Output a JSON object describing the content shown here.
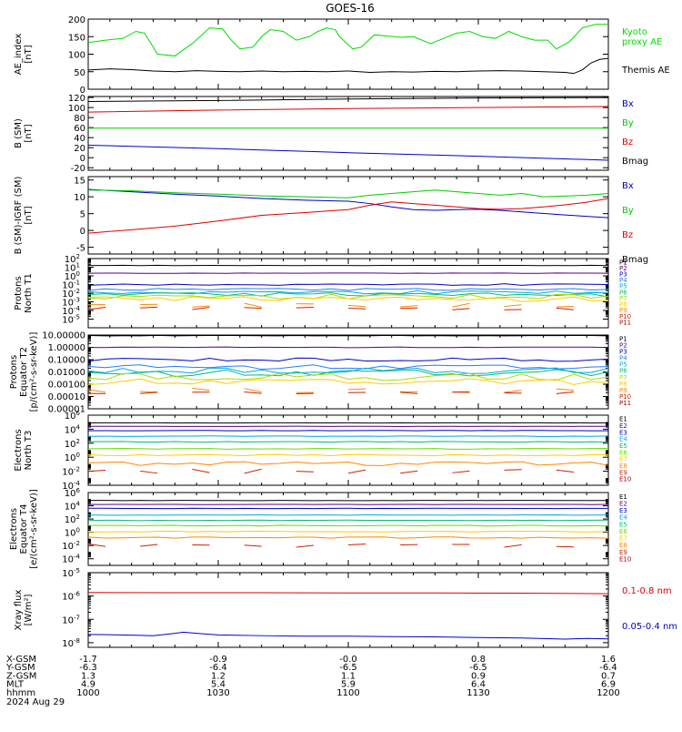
{
  "title": "GOES-16",
  "footer": {
    "row_labels": [
      "X-GSM",
      "Y-GSM",
      "Z-GSM",
      "MLT",
      "hhmm"
    ],
    "date": "2024 Aug 29",
    "columns": [
      [
        "-1.7",
        "-6.3",
        "1.3",
        "4.9",
        "1000"
      ],
      [
        "-0.9",
        "-6.4",
        "1.2",
        "5.4",
        "1030"
      ],
      [
        "-0.0",
        "-6.5",
        "1.1",
        "5.9",
        "1100"
      ],
      [
        "0.8",
        "-6.5",
        "0.9",
        "6.4",
        "1130"
      ],
      [
        "1.6",
        "-6.4",
        "0.7",
        "6.9",
        "1200"
      ]
    ]
  },
  "chart_data": [
    {
      "id": "ae",
      "type": "line",
      "ylabel": [
        "AE_index",
        "[nT]"
      ],
      "ylim": [
        0,
        200
      ],
      "yticks": [
        0,
        50,
        100,
        150,
        200
      ],
      "series": [
        {
          "name": "Kyoto proxy AE",
          "name_lines": [
            "Kyoto",
            "proxy AE"
          ],
          "color": "#00dd00",
          "x": [
            0,
            4,
            8,
            11,
            13,
            16,
            20,
            24,
            28,
            31,
            33,
            35,
            38,
            40,
            42,
            45,
            48,
            51,
            53,
            55,
            57,
            58,
            61,
            63,
            66,
            69,
            72,
            75,
            79,
            82,
            85,
            88,
            91,
            94,
            97,
            100,
            103,
            106,
            108,
            111,
            114,
            117,
            120
          ],
          "y": [
            133,
            140,
            145,
            165,
            160,
            100,
            95,
            130,
            175,
            172,
            140,
            115,
            120,
            150,
            170,
            165,
            140,
            150,
            165,
            175,
            170,
            150,
            115,
            120,
            155,
            152,
            148,
            150,
            130,
            145,
            160,
            165,
            150,
            145,
            165,
            150,
            140,
            140,
            115,
            135,
            175,
            185,
            185
          ]
        },
        {
          "name": "Themis AE",
          "name_lines": [
            "Themis AE"
          ],
          "color": "#000000",
          "x": [
            0,
            5,
            10,
            15,
            20,
            25,
            30,
            35,
            40,
            45,
            50,
            55,
            60,
            65,
            70,
            75,
            80,
            85,
            90,
            95,
            100,
            105,
            110,
            112,
            114,
            116,
            118,
            120
          ],
          "y": [
            55,
            58,
            56,
            52,
            50,
            53,
            51,
            50,
            52,
            50,
            51,
            50,
            52,
            48,
            50,
            49,
            51,
            50,
            52,
            53,
            52,
            50,
            48,
            45,
            55,
            75,
            85,
            88
          ]
        }
      ]
    },
    {
      "id": "bsm",
      "type": "line",
      "ylabel": [
        "B (SM)",
        "[nT]"
      ],
      "ylim": [
        -25,
        122
      ],
      "yticks": [
        -20,
        0,
        20,
        40,
        60,
        80,
        100,
        120
      ],
      "series": [
        {
          "name": "Bx",
          "color": "#0000cc",
          "x": [
            0,
            30,
            60,
            90,
            120
          ],
          "y": [
            25,
            18,
            10,
            3,
            -5
          ]
        },
        {
          "name": "By",
          "color": "#00cc00",
          "x": [
            0,
            60,
            120
          ],
          "y": [
            59,
            59,
            59
          ]
        },
        {
          "name": "Bz",
          "color": "#dd0000",
          "x": [
            0,
            30,
            60,
            90,
            120
          ],
          "y": [
            91,
            95,
            98,
            100,
            102
          ]
        },
        {
          "name": "Bmag",
          "color": "#000000",
          "x": [
            0,
            30,
            60,
            90,
            120
          ],
          "y": [
            112,
            114,
            117,
            119,
            120
          ]
        }
      ]
    },
    {
      "id": "bigrf",
      "type": "line",
      "ylabel": [
        "B (SM)-IGRF (SM)",
        "[nT]"
      ],
      "ylim": [
        -7,
        16
      ],
      "yticks": [
        -5,
        0,
        5,
        10,
        15
      ],
      "series": [
        {
          "name": "Bx",
          "color": "#0000cc",
          "x": [
            0,
            10,
            20,
            30,
            40,
            50,
            60,
            65,
            70,
            75,
            80,
            85,
            90,
            95,
            100,
            110,
            120
          ],
          "y": [
            12.2,
            11.5,
            10.8,
            10.2,
            9.5,
            9.0,
            8.7,
            8.0,
            7.0,
            6.2,
            6.0,
            6.2,
            6.3,
            6.0,
            5.5,
            4.6,
            3.8
          ]
        },
        {
          "name": "By",
          "color": "#00cc00",
          "x": [
            0,
            10,
            20,
            30,
            40,
            50,
            60,
            65,
            70,
            75,
            80,
            85,
            90,
            95,
            100,
            105,
            110,
            115,
            120
          ],
          "y": [
            12.0,
            11.8,
            11.2,
            10.8,
            10.3,
            10.0,
            9.7,
            10.5,
            11.0,
            11.5,
            12.0,
            11.5,
            11.0,
            10.5,
            11.0,
            10.0,
            10.2,
            10.5,
            11.0
          ]
        },
        {
          "name": "Bz",
          "color": "#dd0000",
          "x": [
            0,
            10,
            20,
            30,
            40,
            50,
            60,
            65,
            70,
            75,
            80,
            85,
            90,
            95,
            100,
            105,
            110,
            115,
            120
          ],
          "y": [
            -0.8,
            0.2,
            1.3,
            2.8,
            4.5,
            5.3,
            6.2,
            7.5,
            8.5,
            8.0,
            7.5,
            7.0,
            6.5,
            6.3,
            6.5,
            7.0,
            7.6,
            8.4,
            9.5
          ]
        },
        {
          "name": "Bmag",
          "color": "#000000",
          "x": [],
          "y": []
        }
      ]
    },
    {
      "id": "pnorth",
      "type": "line",
      "log": true,
      "ylabel": [
        "Protons",
        "North T1"
      ],
      "ylim_exp": [
        -6,
        2
      ],
      "yticks_exp": [
        -5,
        -4,
        -3,
        -2,
        -1,
        0,
        1,
        2
      ],
      "series": [
        {
          "name": "P1",
          "color": "#000000",
          "level": 1.2,
          "amp": 0.02
        },
        {
          "name": "P2",
          "color": "#5a007a",
          "level": 0.3,
          "amp": 0.03
        },
        {
          "name": "P3",
          "color": "#0000cc",
          "level": -1.0,
          "amp": 0.1
        },
        {
          "name": "P4",
          "color": "#1f7fff",
          "level": -1.6,
          "amp": 0.15
        },
        {
          "name": "P5",
          "color": "#00aadd",
          "level": -1.9,
          "amp": 0.2
        },
        {
          "name": "P6",
          "color": "#00bb77",
          "level": -2.2,
          "amp": 0.25
        },
        {
          "name": "P7",
          "color": "#aadd00",
          "level": -2.4,
          "amp": 0.3
        },
        {
          "name": "P8",
          "color": "#ffcc00",
          "level": -2.7,
          "amp": 0.3
        },
        {
          "name": "P9",
          "color": "#ff8800",
          "level": -3.4,
          "amp": 0.25,
          "dash": true
        },
        {
          "name": "P10",
          "color": "#cc2200",
          "level": -3.8,
          "amp": 0.2,
          "dash": true
        },
        {
          "name": "P11",
          "color": "#990000",
          "level": -4.7,
          "amp": 0.0,
          "dash": true,
          "hidden": true
        }
      ]
    },
    {
      "id": "pequator",
      "type": "line",
      "log": true,
      "ylabel": [
        "Protons",
        "Equator T2",
        "[p/(cm²-s-sr-keV)]"
      ],
      "ylim_exp": [
        -5,
        1
      ],
      "yticks_exp": [
        -5,
        -4,
        -3,
        -2,
        -1,
        0,
        1
      ],
      "ytick_labels": [
        "0.00001",
        "0.00010",
        "0.00100",
        "0.01000",
        "0.10000",
        "1.00000",
        "10.00000"
      ],
      "series": [
        {
          "name": "P1",
          "color": "#000000",
          "level": 0.95,
          "amp": 0.02
        },
        {
          "name": "P2",
          "color": "#5a007a",
          "level": 0.0,
          "amp": 0.03
        },
        {
          "name": "P3",
          "color": "#0000cc",
          "level": -1.0,
          "amp": 0.15
        },
        {
          "name": "P4",
          "color": "#1f7fff",
          "level": -1.6,
          "amp": 0.2
        },
        {
          "name": "P5",
          "color": "#00aadd",
          "level": -1.9,
          "amp": 0.25
        },
        {
          "name": "P6",
          "color": "#00bb77",
          "level": -2.1,
          "amp": 0.3
        },
        {
          "name": "P7",
          "color": "#aadd00",
          "level": -2.4,
          "amp": 0.3
        },
        {
          "name": "P8",
          "color": "#ffcc00",
          "level": -2.8,
          "amp": 0.25
        },
        {
          "name": "P9",
          "color": "#ff8800",
          "level": -3.5,
          "amp": 0.2,
          "dash": true
        },
        {
          "name": "P10",
          "color": "#cc2200",
          "level": -3.7,
          "amp": 0.1,
          "dash": true
        },
        {
          "name": "P11",
          "color": "#990000",
          "level": -4.3,
          "amp": 0.0,
          "dash": true,
          "hidden": true
        }
      ]
    },
    {
      "id": "enorth",
      "type": "line",
      "log": true,
      "ylabel": [
        "Electrons",
        "North T3"
      ],
      "ylim_exp": [
        -4,
        6
      ],
      "yticks_exp": [
        -4,
        -2,
        0,
        2,
        4,
        6
      ],
      "series": [
        {
          "name": "E1",
          "color": "#000000",
          "level": 4.9,
          "amp": 0.02
        },
        {
          "name": "E2",
          "color": "#5a007a",
          "level": 4.4,
          "amp": 0.02
        },
        {
          "name": "E3",
          "color": "#0000cc",
          "level": 3.8,
          "amp": 0.03
        },
        {
          "name": "E4",
          "color": "#00aadd",
          "level": 3.0,
          "amp": 0.04
        },
        {
          "name": "E5",
          "color": "#00bb77",
          "level": 2.2,
          "amp": 0.05
        },
        {
          "name": "E6",
          "color": "#66dd00",
          "level": 1.2,
          "amp": 0.06
        },
        {
          "name": "E7",
          "color": "#ffcc00",
          "level": 0.3,
          "amp": 0.08
        },
        {
          "name": "E8",
          "color": "#ff8800",
          "level": -0.9,
          "amp": 0.3
        },
        {
          "name": "E9",
          "color": "#cc2200",
          "level": -2.0,
          "amp": 0.3,
          "dash": true
        },
        {
          "name": "E10",
          "color": "#990000",
          "level": -3.5,
          "amp": 0.0,
          "dash": true,
          "hidden": true
        }
      ]
    },
    {
      "id": "eequator",
      "type": "line",
      "log": true,
      "ylabel": [
        "Electrons",
        "Equator T4",
        "[e/(cm²-s-sr-keV)]"
      ],
      "ylim_exp": [
        -5,
        6
      ],
      "yticks_exp": [
        -4,
        -2,
        0,
        2,
        4,
        6
      ],
      "series": [
        {
          "name": "E1",
          "color": "#000000",
          "level": 4.8,
          "amp": 0.02
        },
        {
          "name": "E2",
          "color": "#5a007a",
          "level": 4.2,
          "amp": 0.02
        },
        {
          "name": "E3",
          "color": "#0000cc",
          "level": 3.6,
          "amp": 0.03
        },
        {
          "name": "E4",
          "color": "#00aadd",
          "level": 2.6,
          "amp": 0.03
        },
        {
          "name": "E5",
          "color": "#00bb77",
          "level": 1.8,
          "amp": 0.04
        },
        {
          "name": "E6",
          "color": "#66dd00",
          "level": 1.0,
          "amp": 0.05
        },
        {
          "name": "E7",
          "color": "#ffcc00",
          "level": 0.1,
          "amp": 0.06
        },
        {
          "name": "E8",
          "color": "#ff8800",
          "level": -0.8,
          "amp": 0.1
        },
        {
          "name": "E9",
          "color": "#cc2200",
          "level": -2.0,
          "amp": 0.3,
          "dash": true
        },
        {
          "name": "E10",
          "color": "#990000",
          "level": -4.0,
          "amp": 0.0,
          "dash": true,
          "hidden": true
        }
      ]
    },
    {
      "id": "xray",
      "type": "line",
      "log": true,
      "ylabel": [
        "Xray flux",
        "[W/m²]"
      ],
      "ylim_exp": [
        -8.2,
        -5.0
      ],
      "yticks_exp": [
        -8,
        -7,
        -6,
        -5
      ],
      "series": [
        {
          "name": "0.1-0.8 nm",
          "color": "#dd0000",
          "x": [
            0,
            20,
            40,
            60,
            80,
            100,
            120
          ],
          "y": [
            -5.85,
            -5.86,
            -5.86,
            -5.87,
            -5.87,
            -5.88,
            -5.9
          ]
        },
        {
          "name": "0.05-0.4 nm",
          "color": "#0000cc",
          "x": [
            0,
            5,
            10,
            15,
            20,
            22,
            25,
            30,
            40,
            50,
            60,
            70,
            80,
            90,
            100,
            110,
            115,
            120
          ],
          "y": [
            -7.65,
            -7.66,
            -7.68,
            -7.7,
            -7.6,
            -7.55,
            -7.6,
            -7.67,
            -7.7,
            -7.72,
            -7.72,
            -7.74,
            -7.75,
            -7.78,
            -7.8,
            -7.85,
            -7.82,
            -7.84
          ]
        }
      ]
    }
  ]
}
